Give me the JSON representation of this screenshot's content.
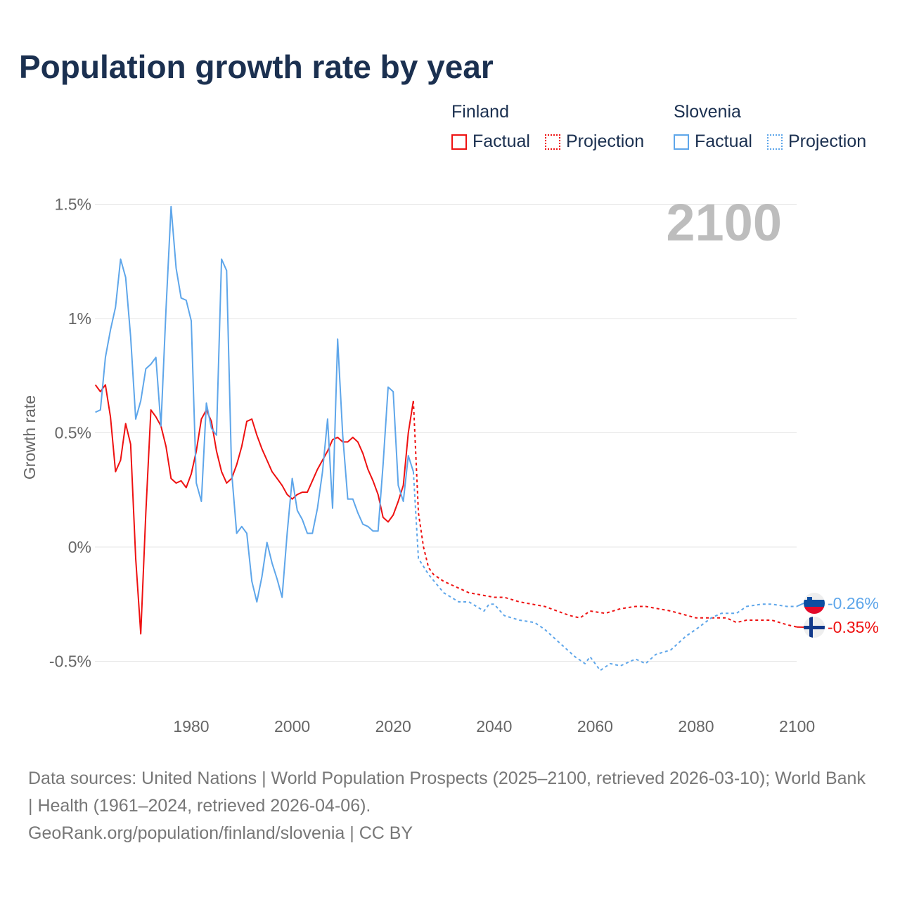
{
  "title": "Population growth rate by year",
  "legend": {
    "groups": [
      {
        "name": "Finland",
        "color": "#ee1111",
        "items": [
          "Factual",
          "Projection"
        ]
      },
      {
        "name": "Slovenia",
        "color": "#5ea6ea",
        "items": [
          "Factual",
          "Projection"
        ]
      }
    ]
  },
  "year_label": "2100",
  "end_labels": {
    "slovenia": "-0.26%",
    "finland": "-0.35%"
  },
  "footer": {
    "line1": "Data sources: United Nations | World Population Prospects (2025–2100, retrieved 2026-03-10); World Bank | Health (1961–2024, retrieved 2026-04-06).",
    "line2": "GeoRank.org/population/finland/slovenia | CC BY"
  },
  "chart_data": {
    "type": "line",
    "title": "Population growth rate by year",
    "xlabel": "",
    "ylabel": "Growth rate",
    "xlim": [
      1961,
      2100
    ],
    "ylim": [
      -0.7,
      1.6
    ],
    "x_ticks": [
      1980,
      2000,
      2020,
      2040,
      2060,
      2080,
      2100
    ],
    "x_tick_labels": [
      "1980",
      "2000",
      "2020",
      "2040",
      "2060",
      "2080",
      "2100"
    ],
    "y_ticks": [
      -0.5,
      0,
      0.5,
      1,
      1.5
    ],
    "y_tick_labels": [
      "-0.5%",
      "0%",
      "0.5%",
      "1%",
      "1.5%"
    ],
    "grid": true,
    "legend_position": "top-right",
    "series": [
      {
        "name": "Finland Factual",
        "color": "#ee1111",
        "style": "solid",
        "x": [
          1961,
          1962,
          1963,
          1964,
          1965,
          1966,
          1967,
          1968,
          1969,
          1970,
          1971,
          1972,
          1973,
          1974,
          1975,
          1976,
          1977,
          1978,
          1979,
          1980,
          1981,
          1982,
          1983,
          1984,
          1985,
          1986,
          1987,
          1988,
          1989,
          1990,
          1991,
          1992,
          1993,
          1994,
          1995,
          1996,
          1997,
          1998,
          1999,
          2000,
          2001,
          2002,
          2003,
          2004,
          2005,
          2006,
          2007,
          2008,
          2009,
          2010,
          2011,
          2012,
          2013,
          2014,
          2015,
          2016,
          2017,
          2018,
          2019,
          2020,
          2021,
          2022,
          2023,
          2024
        ],
        "y": [
          0.71,
          0.68,
          0.71,
          0.57,
          0.33,
          0.38,
          0.54,
          0.45,
          -0.05,
          -0.38,
          0.15,
          0.6,
          0.57,
          0.53,
          0.44,
          0.3,
          0.28,
          0.29,
          0.26,
          0.32,
          0.42,
          0.56,
          0.6,
          0.55,
          0.42,
          0.33,
          0.28,
          0.3,
          0.36,
          0.44,
          0.55,
          0.56,
          0.49,
          0.43,
          0.38,
          0.33,
          0.3,
          0.27,
          0.23,
          0.21,
          0.23,
          0.24,
          0.24,
          0.29,
          0.34,
          0.38,
          0.42,
          0.47,
          0.48,
          0.46,
          0.46,
          0.48,
          0.46,
          0.41,
          0.34,
          0.29,
          0.23,
          0.13,
          0.11,
          0.14,
          0.2,
          0.27,
          0.5,
          0.64
        ]
      },
      {
        "name": "Finland Projection",
        "color": "#ee1111",
        "style": "dotted",
        "x": [
          2024,
          2025,
          2026,
          2027,
          2028,
          2030,
          2035,
          2040,
          2042,
          2045,
          2050,
          2055,
          2057,
          2059,
          2062,
          2065,
          2068,
          2070,
          2075,
          2080,
          2083,
          2086,
          2088,
          2090,
          2095,
          2098,
          2100
        ],
        "y": [
          0.64,
          0.15,
          0.0,
          -0.09,
          -0.12,
          -0.15,
          -0.2,
          -0.22,
          -0.22,
          -0.24,
          -0.26,
          -0.3,
          -0.31,
          -0.28,
          -0.29,
          -0.27,
          -0.26,
          -0.26,
          -0.28,
          -0.31,
          -0.31,
          -0.31,
          -0.33,
          -0.32,
          -0.32,
          -0.34,
          -0.35
        ]
      },
      {
        "name": "Slovenia Factual",
        "color": "#5ea6ea",
        "style": "solid",
        "x": [
          1961,
          1962,
          1963,
          1964,
          1965,
          1966,
          1967,
          1968,
          1969,
          1970,
          1971,
          1972,
          1973,
          1974,
          1975,
          1976,
          1977,
          1978,
          1979,
          1980,
          1981,
          1982,
          1983,
          1984,
          1985,
          1986,
          1987,
          1988,
          1989,
          1990,
          1991,
          1992,
          1993,
          1994,
          1995,
          1996,
          1997,
          1998,
          1999,
          2000,
          2001,
          2002,
          2003,
          2004,
          2005,
          2006,
          2007,
          2008,
          2009,
          2010,
          2011,
          2012,
          2013,
          2014,
          2015,
          2016,
          2017,
          2018,
          2019,
          2020,
          2021,
          2022,
          2023,
          2024
        ],
        "y": [
          0.59,
          0.6,
          0.83,
          0.95,
          1.05,
          1.26,
          1.18,
          0.92,
          0.56,
          0.64,
          0.78,
          0.8,
          0.83,
          0.53,
          1.04,
          1.49,
          1.22,
          1.09,
          1.08,
          0.99,
          0.28,
          0.2,
          0.63,
          0.52,
          0.49,
          1.26,
          1.21,
          0.33,
          0.06,
          0.09,
          0.06,
          -0.15,
          -0.24,
          -0.13,
          0.02,
          -0.07,
          -0.14,
          -0.22,
          0.06,
          0.3,
          0.16,
          0.12,
          0.06,
          0.06,
          0.17,
          0.33,
          0.56,
          0.17,
          0.91,
          0.49,
          0.21,
          0.21,
          0.15,
          0.1,
          0.09,
          0.07,
          0.07,
          0.36,
          0.7,
          0.68,
          0.27,
          0.2,
          0.4,
          0.33
        ]
      },
      {
        "name": "Slovenia Projection",
        "color": "#5ea6ea",
        "style": "dotted",
        "x": [
          2024,
          2025,
          2027,
          2030,
          2033,
          2035,
          2038,
          2039,
          2040,
          2042,
          2045,
          2048,
          2050,
          2053,
          2056,
          2058,
          2059,
          2061,
          2063,
          2065,
          2068,
          2070,
          2072,
          2075,
          2078,
          2080,
          2083,
          2085,
          2088,
          2090,
          2093,
          2095,
          2098,
          2100
        ],
        "y": [
          0.33,
          -0.05,
          -0.12,
          -0.2,
          -0.24,
          -0.24,
          -0.28,
          -0.25,
          -0.25,
          -0.3,
          -0.32,
          -0.33,
          -0.36,
          -0.42,
          -0.48,
          -0.51,
          -0.48,
          -0.54,
          -0.51,
          -0.52,
          -0.49,
          -0.51,
          -0.47,
          -0.45,
          -0.39,
          -0.36,
          -0.31,
          -0.29,
          -0.29,
          -0.26,
          -0.25,
          -0.25,
          -0.26,
          -0.26
        ]
      }
    ]
  }
}
